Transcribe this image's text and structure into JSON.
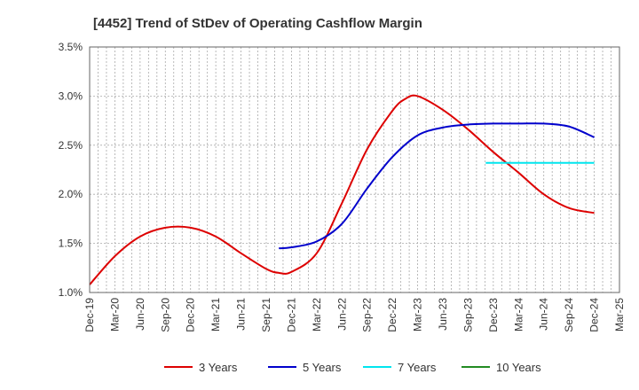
{
  "chart_data": {
    "type": "line",
    "title": "[4452]  Trend of StDev of Operating Cashflow Margin",
    "xlabel": "",
    "ylabel": "",
    "x_ticks": [
      "Dec-19",
      "Mar-20",
      "Jun-20",
      "Sep-20",
      "Dec-20",
      "Mar-21",
      "Jun-21",
      "Sep-21",
      "Dec-21",
      "Mar-22",
      "Jun-22",
      "Sep-22",
      "Dec-22",
      "Mar-23",
      "Jun-23",
      "Sep-23",
      "Dec-23",
      "Mar-24",
      "Jun-24",
      "Sep-24",
      "Dec-24",
      "Mar-25"
    ],
    "y_ticks": [
      "1.0%",
      "1.5%",
      "2.0%",
      "2.5%",
      "3.0%",
      "3.5%"
    ],
    "ylim": [
      1.0,
      3.5
    ],
    "grid": "vertical dotted lines at every quarter, horizontal at every 0.5%",
    "legend_position": "bottom",
    "series": [
      {
        "name": "3 Years",
        "color": "#dd0000",
        "values": [
          [
            0,
            1.08
          ],
          [
            1,
            1.37
          ],
          [
            2,
            1.57
          ],
          [
            3,
            1.66
          ],
          [
            4,
            1.66
          ],
          [
            5,
            1.57
          ],
          [
            6,
            1.4
          ],
          [
            7,
            1.24
          ],
          [
            7.5,
            1.2
          ],
          [
            8,
            1.21
          ],
          [
            9,
            1.4
          ],
          [
            10,
            1.91
          ],
          [
            11,
            2.46
          ],
          [
            12,
            2.85
          ],
          [
            12.5,
            2.97
          ],
          [
            13,
            3.0
          ],
          [
            14,
            2.86
          ],
          [
            15,
            2.66
          ],
          [
            16,
            2.43
          ],
          [
            17,
            2.22
          ],
          [
            18,
            2.0
          ],
          [
            19,
            1.86
          ],
          [
            20,
            1.81
          ]
        ]
      },
      {
        "name": "5 Years",
        "color": "#0000cc",
        "values": [
          [
            7.5,
            1.45
          ],
          [
            8,
            1.46
          ],
          [
            9,
            1.52
          ],
          [
            10,
            1.7
          ],
          [
            11,
            2.06
          ],
          [
            12,
            2.38
          ],
          [
            13,
            2.6
          ],
          [
            14,
            2.68
          ],
          [
            15,
            2.71
          ],
          [
            16,
            2.72
          ],
          [
            17,
            2.72
          ],
          [
            18,
            2.72
          ],
          [
            19,
            2.69
          ],
          [
            20,
            2.58
          ]
        ]
      },
      {
        "name": "7 Years",
        "color": "#00e5ee",
        "values": [
          [
            15.7,
            2.32
          ],
          [
            16,
            2.32
          ],
          [
            18,
            2.32
          ],
          [
            20,
            2.32
          ]
        ]
      },
      {
        "name": "10 Years",
        "color": "#228b22",
        "values": []
      }
    ]
  }
}
